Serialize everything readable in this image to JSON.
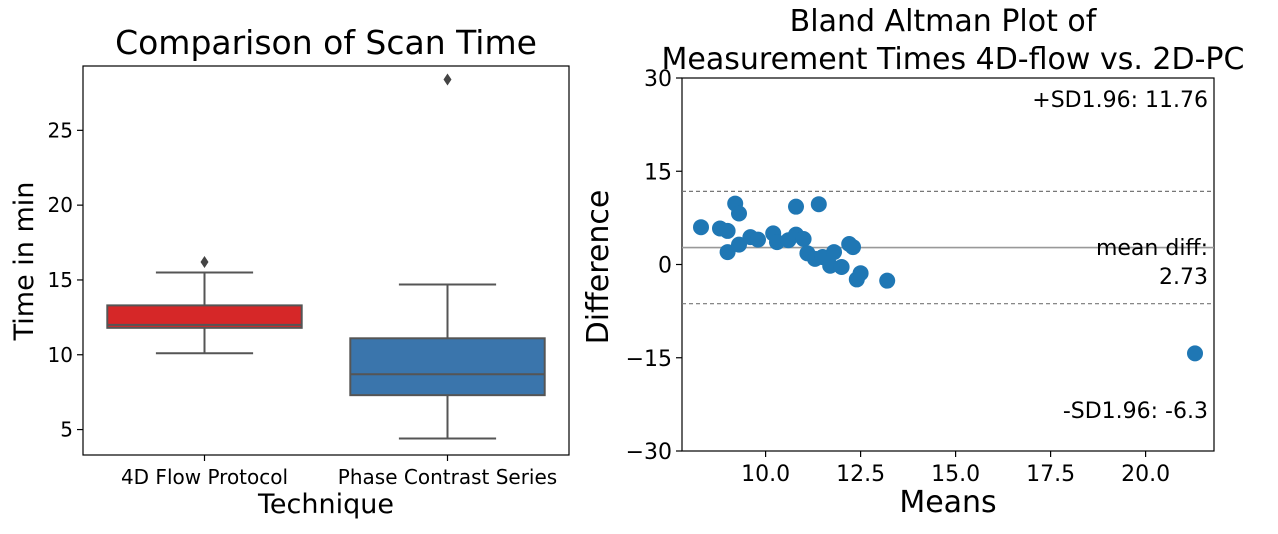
{
  "chart_data": [
    {
      "type": "box",
      "title": "Comparison of Scan Time",
      "xlabel": "Technique",
      "ylabel": "Time in min",
      "ylim": [
        3.3,
        29.3
      ],
      "yticks": [
        5,
        10,
        15,
        20,
        25
      ],
      "categories": [
        "4D Flow Protocol",
        "Phase Contrast Series"
      ],
      "boxes": [
        {
          "category": "4D Flow Protocol",
          "color": "#d62728",
          "whisker_low": 10.1,
          "q1": 11.8,
          "median": 12.0,
          "q3": 13.3,
          "whisker_high": 15.5,
          "outliers": [
            16.2
          ]
        },
        {
          "category": "Phase Contrast Series",
          "color": "#3a75ac",
          "whisker_low": 4.4,
          "q1": 7.3,
          "median": 8.7,
          "q3": 11.1,
          "whisker_high": 14.7,
          "outliers": [
            28.4
          ]
        }
      ]
    },
    {
      "type": "scatter",
      "title": "Bland Altman Plot of Measurement Times 4D-flow vs. 2D-PC",
      "xlabel": "Means",
      "ylabel": "Difference",
      "xlim": [
        7.8,
        21.8
      ],
      "ylim": [
        -30,
        30
      ],
      "xticks": [
        "10.0",
        "12.5",
        "15.0",
        "17.5",
        "20.0"
      ],
      "yticks": [
        "30",
        "15",
        "0",
        "−15",
        "−30"
      ],
      "ytick_values": [
        30,
        15,
        0,
        -15,
        -30
      ],
      "xtick_values": [
        10,
        12.5,
        15,
        17.5,
        20
      ],
      "point_color": "#1f77b4",
      "mean_diff": 2.73,
      "upper_limit": 11.76,
      "lower_limit": -6.3,
      "annotations": {
        "upper": "+SD1.96: 11.76",
        "mean_line1": "mean diff:",
        "mean_line2": "2.73",
        "lower": "-SD1.96: -6.3"
      },
      "points": [
        {
          "x": 8.3,
          "y": 6.0
        },
        {
          "x": 8.8,
          "y": 5.8
        },
        {
          "x": 9.0,
          "y": 5.4
        },
        {
          "x": 9.0,
          "y": 2.0
        },
        {
          "x": 9.2,
          "y": 9.8
        },
        {
          "x": 9.3,
          "y": 3.2
        },
        {
          "x": 9.3,
          "y": 8.2
        },
        {
          "x": 9.6,
          "y": 4.4
        },
        {
          "x": 9.8,
          "y": 4.0
        },
        {
          "x": 10.2,
          "y": 5.0
        },
        {
          "x": 10.3,
          "y": 3.6
        },
        {
          "x": 10.6,
          "y": 3.9
        },
        {
          "x": 10.8,
          "y": 4.8
        },
        {
          "x": 10.8,
          "y": 9.3
        },
        {
          "x": 11.0,
          "y": 4.1
        },
        {
          "x": 11.1,
          "y": 1.8
        },
        {
          "x": 11.3,
          "y": 0.9
        },
        {
          "x": 11.4,
          "y": 9.7
        },
        {
          "x": 11.5,
          "y": 1.2
        },
        {
          "x": 11.7,
          "y": -0.2
        },
        {
          "x": 11.8,
          "y": 2.0
        },
        {
          "x": 12.0,
          "y": -0.4
        },
        {
          "x": 12.2,
          "y": 3.3
        },
        {
          "x": 12.3,
          "y": 2.8
        },
        {
          "x": 12.4,
          "y": -2.4
        },
        {
          "x": 12.5,
          "y": -1.4
        },
        {
          "x": 13.2,
          "y": -2.6
        },
        {
          "x": 21.3,
          "y": -14.3
        }
      ]
    }
  ]
}
